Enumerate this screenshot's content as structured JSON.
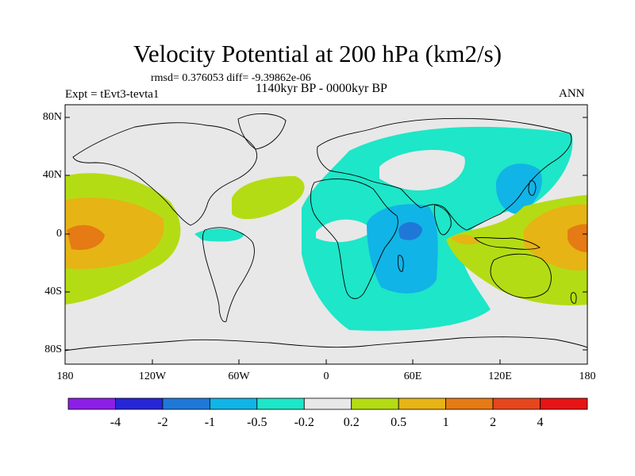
{
  "title": "Velocity Potential at 200 hPa (km2/s)",
  "stats_line": "rmsd= 0.376053  diff= -9.39862e-06",
  "experiment": "Expt = tEvt3-tevta1",
  "period": "1140kyr BP - 0000kyr BP",
  "season": "ANN",
  "lat_ticks": [
    "80N",
    "40N",
    "0",
    "40S",
    "80S"
  ],
  "lon_ticks": [
    "180",
    "120W",
    "60W",
    "0",
    "60E",
    "120E",
    "180"
  ],
  "colorbar": {
    "labels": [
      "-4",
      "-2",
      "-1",
      "-0.5",
      "-0.2",
      "0.2",
      "0.5",
      "1",
      "2",
      "4"
    ],
    "colors": [
      "#8c1ee6",
      "#2626d6",
      "#1f78d8",
      "#11b4e6",
      "#1ee6c8",
      "#e8e8e8",
      "#b4dc14",
      "#e6b414",
      "#e67a14",
      "#e6461e",
      "#e61414"
    ]
  },
  "fill_colors": {
    "land_outline": "#000000",
    "neutral": "#e8e8e8",
    "neg_small": "#1ee6c8",
    "neg_mid": "#11b4e6",
    "pos_small": "#b4dc14",
    "pos_mid": "#e6b414",
    "pos_large": "#e67a14"
  }
}
